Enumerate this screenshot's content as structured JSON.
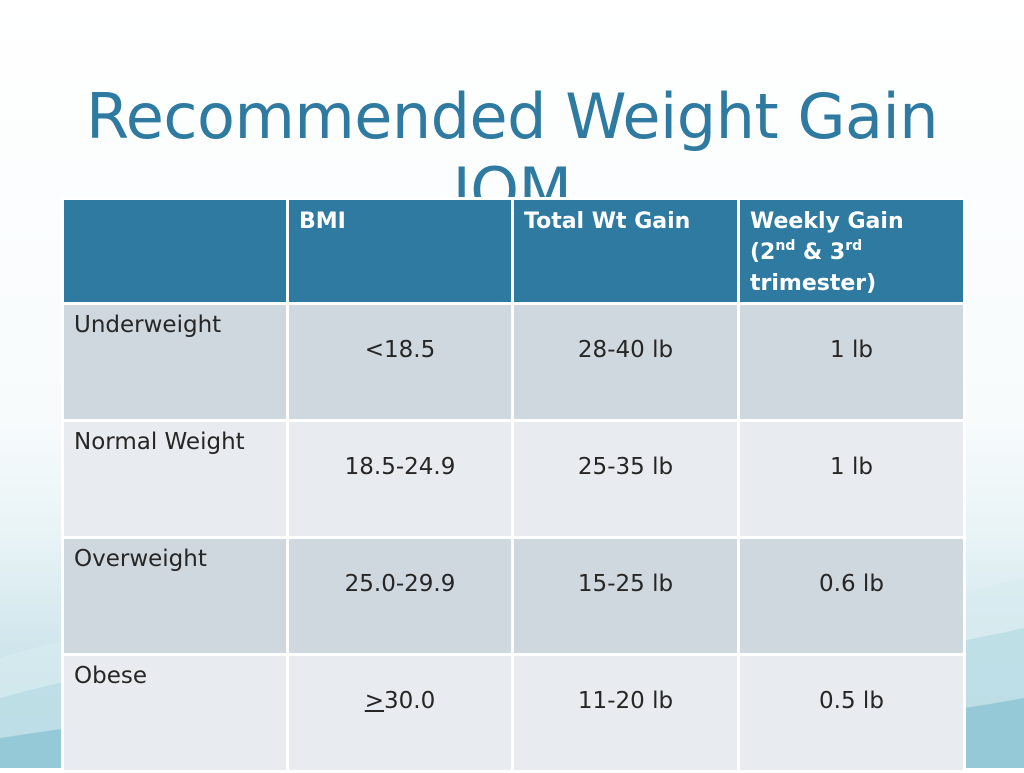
{
  "title": {
    "line1": "Recommended Weight Gain",
    "line2": "IOM"
  },
  "table": {
    "headers": {
      "blank": "",
      "bmi": "BMI",
      "total": "Total Wt Gain",
      "weekly": {
        "line1": "Weekly Gain",
        "open": "(2",
        "sup1": "nd",
        "amp": " & 3",
        "sup2": "rd",
        "line3": "trimester)"
      }
    },
    "rows": [
      {
        "category": "Underweight",
        "bmi_prefix": "",
        "bmi": "<18.5",
        "total": "28-40 lb",
        "weekly": "1 lb"
      },
      {
        "category": "Normal Weight",
        "bmi_prefix": "",
        "bmi": "18.5-24.9",
        "total": "25-35 lb",
        "weekly": "1 lb"
      },
      {
        "category": "Overweight",
        "bmi_prefix": "",
        "bmi": "25.0-29.9",
        "total": "15-25 lb",
        "weekly": "0.6 lb"
      },
      {
        "category": "Obese",
        "bmi_prefix": ">",
        "bmi": "30.0",
        "total": "11-20 lb",
        "weekly": "0.5 lb"
      }
    ]
  }
}
